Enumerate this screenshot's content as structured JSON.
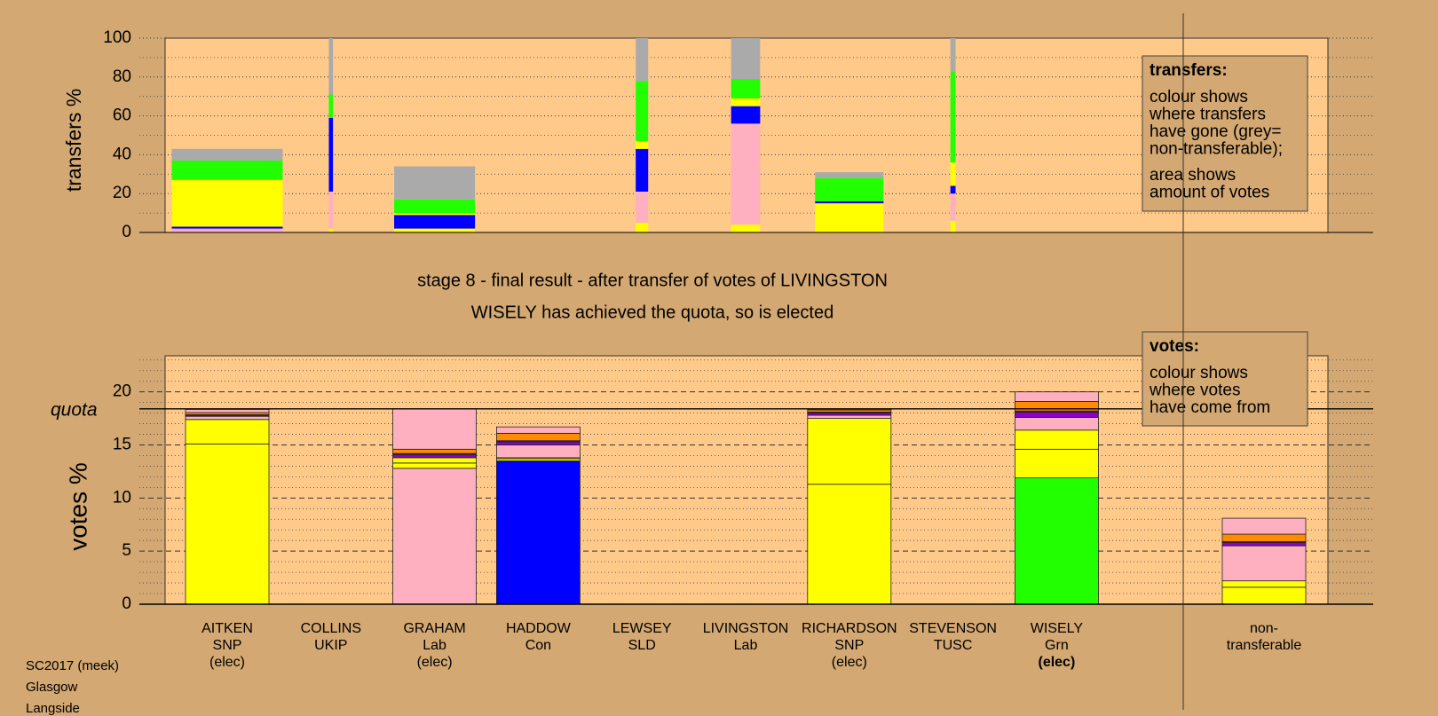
{
  "footer": [
    "SC2017 (meek)",
    "Glasgow",
    "Langside"
  ],
  "chart_data": [
    {
      "type": "bar",
      "stacked": true,
      "ylabel": "transfers %",
      "ylim": [
        0,
        100
      ],
      "yticks": [
        0,
        20,
        40,
        60,
        80,
        100
      ],
      "minor_yticks": [
        10,
        30,
        50,
        70,
        90
      ],
      "grid": true,
      "major_grid": "dotted",
      "plot_color": "#ffc98a",
      "legend_title": "transfers:",
      "legend_lines": [
        [
          "colour shows",
          "where transfers",
          "have gone (grey=",
          "non-transferable);"
        ],
        [
          "area shows",
          "amount of votes"
        ]
      ],
      "bar_widths": [
        1.07,
        0.04,
        0.78,
        0,
        0.12,
        0.28,
        0.66,
        0.05,
        0
      ],
      "series": [
        {
          "color": "#ffff00",
          "values": [
            0,
            2,
            2,
            0,
            5,
            4,
            15,
            6,
            0
          ]
        },
        {
          "color": "#ffb0c0",
          "values": [
            2,
            19,
            0,
            0,
            16,
            52,
            0,
            14,
            0
          ]
        },
        {
          "color": "#0000ff",
          "values": [
            1,
            38,
            7,
            0,
            22,
            9,
            1,
            4,
            0
          ]
        },
        {
          "color": "#ffff00",
          "values": [
            24,
            0,
            1,
            0,
            4,
            4,
            0,
            12,
            0
          ]
        },
        {
          "color": "#22ff00",
          "values": [
            10,
            12,
            7,
            0,
            31,
            10,
            12,
            47,
            0
          ]
        },
        {
          "color": "#aaaaaa",
          "values": [
            6,
            29,
            17,
            0,
            22,
            21,
            3,
            17,
            0
          ]
        }
      ]
    },
    {
      "type": "bar",
      "stacked": true,
      "title": "stage 8 - final result - after transfer of votes of LIVINGSTON",
      "subtitle": "WISELY has achieved the quota, so is elected",
      "ylabel": "votes %",
      "ylim": [
        0,
        23.4
      ],
      "yticks": [
        0,
        5,
        10,
        15,
        20
      ],
      "minor_yticks": [
        1,
        2,
        3,
        4,
        6,
        7,
        8,
        9,
        11,
        12,
        13,
        14,
        16,
        17,
        18,
        19,
        21,
        22,
        23
      ],
      "grid": true,
      "major_grid": "dashed",
      "plot_color": "#ffc98a",
      "quota": 18.4,
      "quota_label": "quota",
      "categories": [
        "AITKEN",
        "COLLINS",
        "GRAHAM",
        "HADDOW",
        "LEWSEY",
        "LIVINGSTON",
        "RICHARDSON",
        "STEVENSON",
        "WISELY",
        null,
        "non-transferable"
      ],
      "parties": [
        "SNP",
        "UKIP",
        "Lab",
        "Con",
        "SLD",
        "Lab",
        "SNP",
        "TUSC",
        "Grn",
        null,
        null
      ],
      "notes": [
        "(elec)",
        null,
        "(elec)",
        null,
        null,
        null,
        "(elec)",
        null,
        "(elec)",
        null,
        null
      ],
      "bold_note_index": 8,
      "legend_title": "votes:",
      "legend_lines": [
        [
          "colour shows",
          "where votes",
          "have come from"
        ]
      ],
      "series": [
        {
          "colors": [
            "#ffff00",
            "#8a00c8",
            "#ffb0c0",
            "#0000ff",
            "#ff8c00",
            "#ffb0c0",
            "#ffff00",
            "#b00000",
            "#22ff00",
            null,
            "#aaaaaa"
          ],
          "values": [
            15.1,
            0,
            12.8,
            13.5,
            0,
            0,
            11.3,
            0,
            11.9,
            null,
            0
          ]
        },
        {
          "color": "#ffff00",
          "values": [
            0,
            0,
            0.5,
            0.2,
            0,
            0,
            6.2,
            0,
            2.7,
            null,
            1.6
          ]
        },
        {
          "color": "#ffff00",
          "values": [
            2.3,
            0,
            0.5,
            0.1,
            0,
            0,
            0,
            0,
            1.8,
            null,
            0.6
          ]
        },
        {
          "color": "#ffb0c0",
          "values": [
            0.3,
            0,
            0,
            1.2,
            0,
            0,
            0.3,
            0,
            1.2,
            null,
            3.3
          ]
        },
        {
          "color": "#8a00c8",
          "values": [
            0.1,
            0,
            0.3,
            0.3,
            0,
            0,
            0.2,
            0,
            0.5,
            null,
            0.3
          ]
        },
        {
          "color": "#b00000",
          "values": [
            0.05,
            0,
            0.1,
            0.1,
            0,
            0,
            0.1,
            0,
            0.1,
            null,
            0.1
          ]
        },
        {
          "color": "#ff8c00",
          "values": [
            0.2,
            0,
            0.4,
            0.7,
            0,
            0,
            0.2,
            0,
            0.9,
            null,
            0.7
          ]
        },
        {
          "color": "#ffb0c0",
          "values": [
            0.3,
            0,
            3.8,
            0.6,
            0,
            0,
            0.1,
            0,
            0.9,
            null,
            1.5
          ]
        }
      ]
    }
  ]
}
